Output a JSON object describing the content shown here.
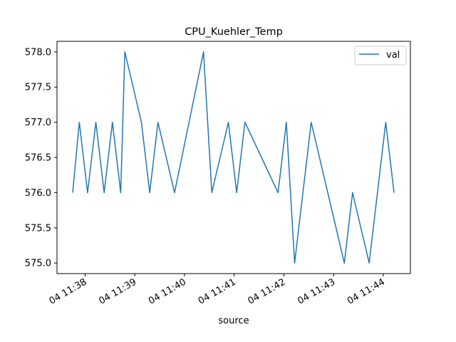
{
  "chart_data": {
    "type": "line",
    "title": "CPU_Kuehler_Temp",
    "xlabel": "source",
    "ylabel": "",
    "x": [
      "11:37:45",
      "11:37:53",
      "11:38:03",
      "11:38:13",
      "11:38:23",
      "11:38:33",
      "11:38:43",
      "11:38:48",
      "11:39:08",
      "11:39:18",
      "11:39:28",
      "11:39:48",
      "11:40:23",
      "11:40:33",
      "11:40:53",
      "11:41:03",
      "11:41:13",
      "11:41:53",
      "11:42:03",
      "11:42:13",
      "11:42:33",
      "11:43:13",
      "11:43:23",
      "11:43:43",
      "11:44:03",
      "11:44:13"
    ],
    "series": [
      {
        "name": "val",
        "color": "#1f77b4",
        "values": [
          576,
          577,
          576,
          577,
          576,
          577,
          576,
          578,
          577,
          576,
          577,
          576,
          578,
          576,
          577,
          576,
          577,
          576,
          577,
          575,
          577,
          575,
          576,
          575,
          577,
          576
        ]
      }
    ],
    "xlim": [
      "11:37:45",
      "11:44:13"
    ],
    "ylim": [
      574.85,
      578.15
    ],
    "yticks": [
      "575.0",
      "575.5",
      "576.0",
      "576.5",
      "577.0",
      "577.5",
      "578.0"
    ],
    "xticks": [
      {
        "t": "11:38:00",
        "label": "04 11:38"
      },
      {
        "t": "11:39:00",
        "label": "04 11:39"
      },
      {
        "t": "11:40:00",
        "label": "04 11:40"
      },
      {
        "t": "11:41:00",
        "label": "04 11:41"
      },
      {
        "t": "11:42:00",
        "label": "04 11:42"
      },
      {
        "t": "11:43:00",
        "label": "04 11:43"
      },
      {
        "t": "11:44:00",
        "label": "04 11:44"
      }
    ],
    "grid": false,
    "legend_position": "top-right"
  }
}
